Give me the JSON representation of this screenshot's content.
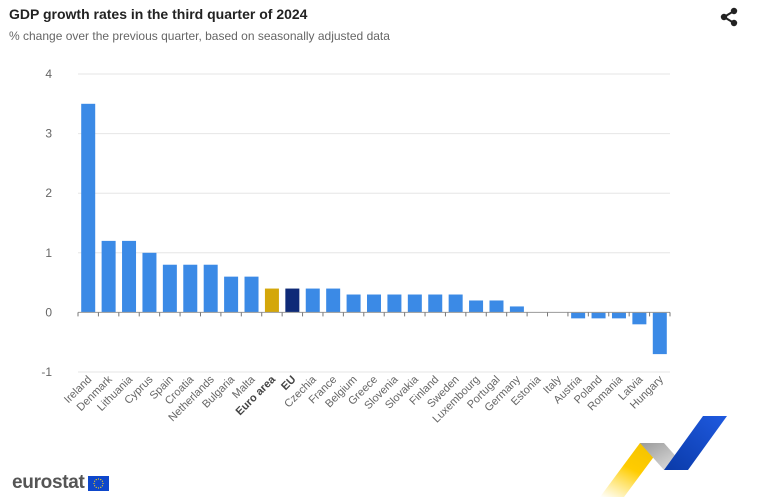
{
  "header": {
    "title": "GDP growth rates in the third quarter of 2024",
    "subtitle": "% change over the previous quarter, based on seasonally adjusted data",
    "share_icon": "share-icon"
  },
  "logo": {
    "text": "eurostat",
    "flag_icon": "eu-flag-icon"
  },
  "colors": {
    "country": "#3b8ae6",
    "euro_area": "#d4a70a",
    "eu": "#0e2a78",
    "grid": "#e6e6e6",
    "axis": "#999999"
  },
  "chart_data": {
    "type": "bar",
    "title": "GDP growth rates in the third quarter of 2024",
    "subtitle": "% change over the previous quarter, based on seasonally adjusted data",
    "xlabel": "",
    "ylabel": "",
    "ylim": [
      -1,
      4
    ],
    "yticks": [
      4,
      3,
      2,
      1,
      0,
      -1
    ],
    "grid": true,
    "legend": "none",
    "categories": [
      "Ireland",
      "Denmark",
      "Lithuania",
      "Cyprus",
      "Spain",
      "Croatia",
      "Netherlands",
      "Bulgaria",
      "Malta",
      "Euro area",
      "EU",
      "Czechia",
      "France",
      "Belgium",
      "Greece",
      "Slovenia",
      "Slovakia",
      "Finland",
      "Sweden",
      "Luxembourg",
      "Portugal",
      "Germany",
      "Estonia",
      "Italy",
      "Austria",
      "Poland",
      "Romania",
      "Latvia",
      "Hungary"
    ],
    "values": [
      3.5,
      1.2,
      1.2,
      1.0,
      0.8,
      0.8,
      0.8,
      0.6,
      0.6,
      0.4,
      0.4,
      0.4,
      0.4,
      0.3,
      0.3,
      0.3,
      0.3,
      0.3,
      0.3,
      0.2,
      0.2,
      0.1,
      0.0,
      0.0,
      -0.1,
      -0.1,
      -0.1,
      -0.2,
      -0.7
    ],
    "highlight": {
      "Euro area": "euro_area",
      "EU": "eu"
    }
  }
}
